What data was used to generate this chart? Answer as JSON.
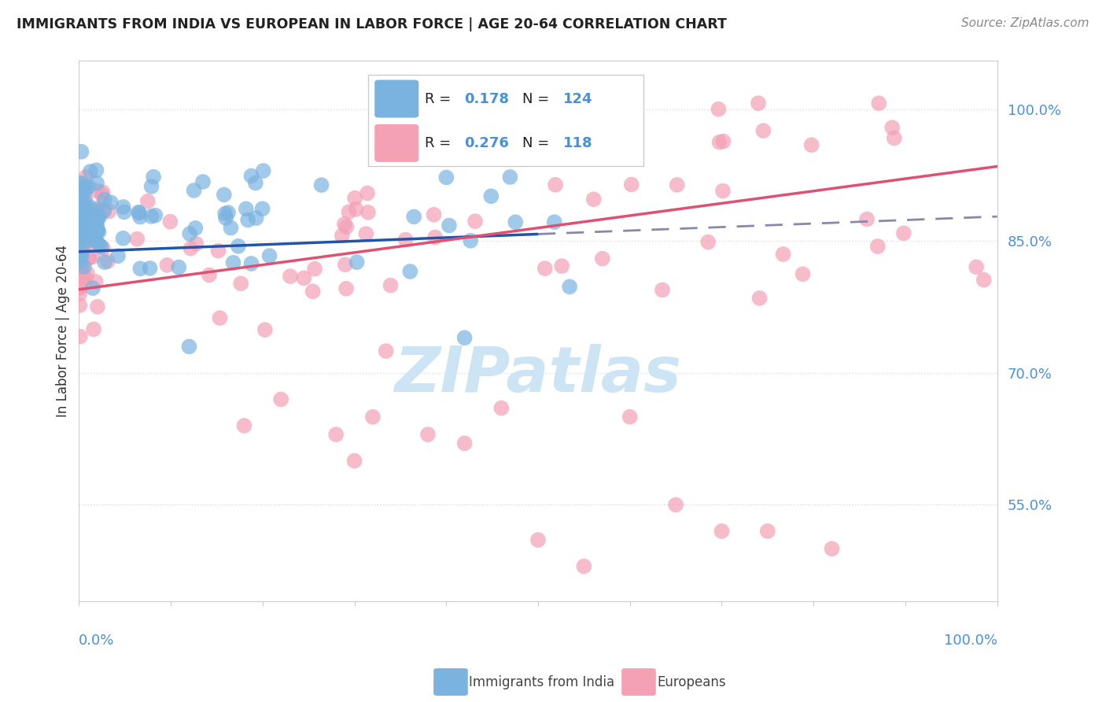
{
  "title": "IMMIGRANTS FROM INDIA VS EUROPEAN IN LABOR FORCE | AGE 20-64 CORRELATION CHART",
  "source": "Source: ZipAtlas.com",
  "ylabel": "In Labor Force | Age 20-64",
  "legend_label1": "Immigrants from India",
  "legend_label2": "Europeans",
  "R1": 0.178,
  "N1": 124,
  "R2": 0.276,
  "N2": 118,
  "color_india": "#7ab3e0",
  "color_india_fill": "#aacce8",
  "color_europe": "#f4a0b5",
  "color_europe_fill": "#f8c0d0",
  "color_india_line": "#2255aa",
  "color_europe_line": "#e05070",
  "color_dashed": "#8888aa",
  "ytick_color": "#4a90d9",
  "title_color": "#222222",
  "source_color": "#888888",
  "ylabel_color": "#333333",
  "watermark_color": "#cce4f4",
  "legend_edge_color": "#cccccc",
  "grid_color": "#dddddd",
  "spine_color": "#cccccc",
  "xlim": [
    0.0,
    1.0
  ],
  "ylim": [
    0.44,
    1.055
  ],
  "yticks": [
    0.55,
    0.7,
    0.85,
    1.0
  ],
  "india_trend_x0": 0.0,
  "india_trend_y0": 0.838,
  "india_trend_x1": 0.5,
  "india_trend_y1": 0.858,
  "india_trend_dash_x0": 0.5,
  "india_trend_dash_y0": 0.858,
  "india_trend_dash_x1": 1.0,
  "india_trend_dash_y1": 0.878,
  "europe_trend_x0": 0.0,
  "europe_trend_y0": 0.795,
  "europe_trend_x1": 1.0,
  "europe_trend_y1": 0.935,
  "india_seed": 12345,
  "europe_seed": 67890
}
